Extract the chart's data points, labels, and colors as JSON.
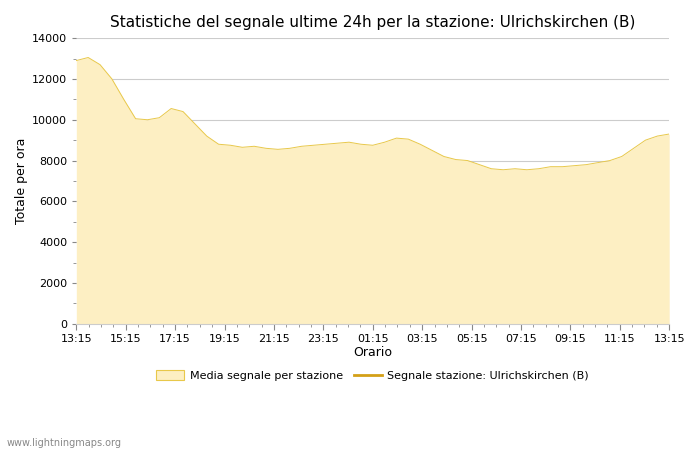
{
  "title": "Statistiche del segnale ultime 24h per la stazione: Ulrichskirchen (B)",
  "xlabel": "Orario",
  "ylabel": "Totale per ora",
  "x_labels": [
    "13:15",
    "15:15",
    "17:15",
    "19:15",
    "21:15",
    "23:15",
    "01:15",
    "03:15",
    "05:15",
    "07:15",
    "09:15",
    "11:15",
    "13:15"
  ],
  "ylim": [
    0,
    14000
  ],
  "yticks": [
    0,
    2000,
    4000,
    6000,
    8000,
    10000,
    12000,
    14000
  ],
  "fill_color": "#FDEFC3",
  "fill_edge_color": "#E8C84A",
  "line_color": "#D4A017",
  "background_color": "#ffffff",
  "grid_color": "#cccccc",
  "watermark": "www.lightningmaps.org",
  "legend_fill_label": "Media segnale per stazione",
  "legend_line_label": "Segnale stazione: Ulrichskirchen (B)",
  "area_y": [
    12900,
    13050,
    12700,
    12000,
    11000,
    10050,
    10000,
    10100,
    10550,
    10400,
    9800,
    9200,
    8800,
    8750,
    8650,
    8700,
    8600,
    8550,
    8600,
    8700,
    8750,
    8800,
    8850,
    8900,
    8800,
    8750,
    8900,
    9100,
    9050,
    8800,
    8500,
    8200,
    8050,
    8000,
    7800,
    7600,
    7550,
    7600,
    7550,
    7600,
    7700,
    7700,
    7750,
    7800,
    7900,
    8000,
    8200,
    8600,
    9000,
    9200,
    9300
  ],
  "title_fontsize": 11,
  "axis_label_fontsize": 9,
  "tick_fontsize": 8,
  "watermark_fontsize": 7
}
